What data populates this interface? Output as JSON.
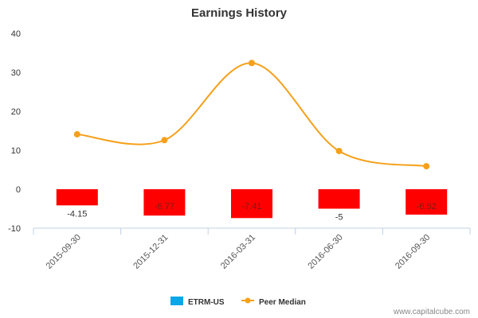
{
  "chart_data": {
    "type": "bar",
    "title": "Earnings History",
    "xlabel": "",
    "ylabel": "",
    "categories": [
      "2015-09-30",
      "2015-12-31",
      "2016-03-31",
      "2016-06-30",
      "2016-09-30"
    ],
    "ylim": [
      -10,
      40
    ],
    "yticks": [
      -10,
      0,
      10,
      20,
      30,
      40
    ],
    "grid": false,
    "legend_position": "bottom",
    "series": [
      {
        "name": "ETRM-US",
        "type": "bar",
        "values": [
          -4.15,
          -6.77,
          -7.41,
          -5,
          -6.52
        ],
        "data_labels": [
          "-4.15",
          "-6.77",
          "-7.41",
          "-5",
          "-6.52"
        ],
        "color": "#ff0000",
        "legend_color": "#0ea5e9"
      },
      {
        "name": "Peer Median",
        "type": "line",
        "smooth": true,
        "values": [
          14.1,
          12.6,
          32.4,
          9.8,
          5.9
        ],
        "color": "#f5a01a"
      }
    ]
  },
  "credit": "www.capitalcube.com"
}
